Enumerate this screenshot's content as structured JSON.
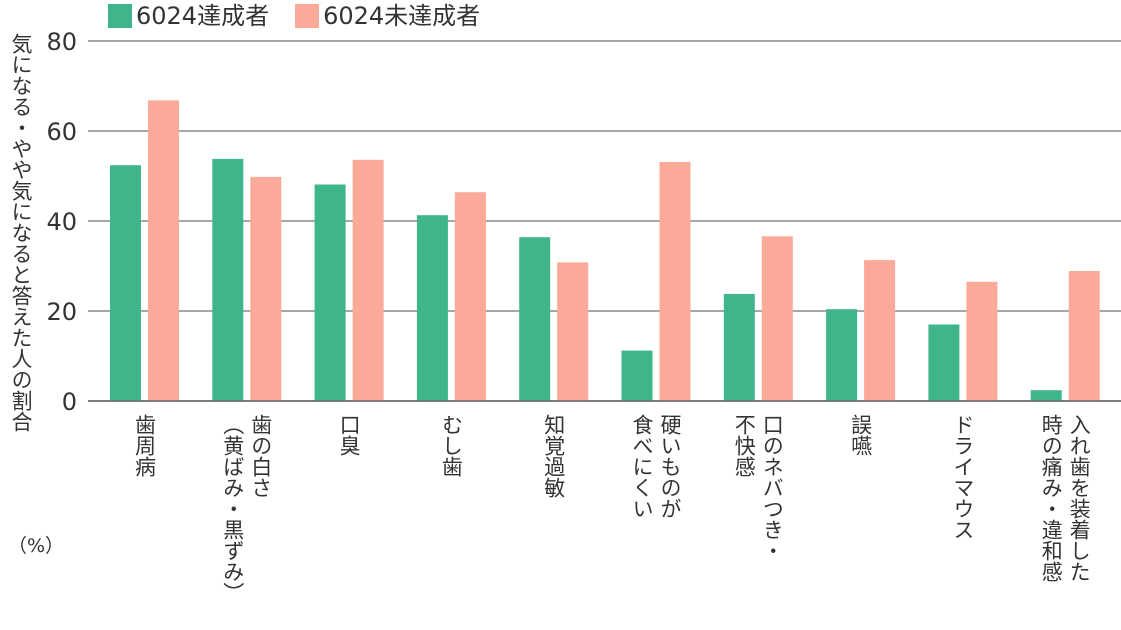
{
  "legend": {
    "items": [
      {
        "label": "6024達成者",
        "color": "#3fb58a"
      },
      {
        "label": "6024未達成者",
        "color": "#fbaa9a"
      }
    ]
  },
  "chart_data": {
    "type": "bar",
    "title": "",
    "ylabel": "気になる・やや気になると答えた人の割合",
    "ylabel_unit": "（%）",
    "xlabel": "",
    "ylim": [
      0,
      80
    ],
    "yticks": [
      0,
      20,
      40,
      60,
      80
    ],
    "grid": true,
    "legend_position": "top-left",
    "categories": [
      [
        "歯周病"
      ],
      [
        "歯の白さ",
        "（黄ばみ・黒ずみ）"
      ],
      [
        "口臭"
      ],
      [
        "むし歯"
      ],
      [
        "知覚過敏"
      ],
      [
        "硬いものが",
        "食べにくい"
      ],
      [
        "口のネバつき・",
        "不快感"
      ],
      [
        "誤嚥"
      ],
      [
        "ドライマウス"
      ],
      [
        "入れ歯を装着した",
        "時の痛み・違和感"
      ]
    ],
    "series": [
      {
        "name": "6024達成者",
        "color": "#3fb58a",
        "values": [
          52.4,
          53.8,
          48.1,
          41.3,
          36.4,
          11.2,
          23.8,
          20.4,
          17.0,
          2.4
        ]
      },
      {
        "name": "6024未達成者",
        "color": "#fbaa9a",
        "values": [
          66.8,
          49.8,
          53.6,
          46.4,
          30.8,
          53.1,
          36.6,
          31.3,
          26.5,
          28.9
        ]
      }
    ]
  }
}
